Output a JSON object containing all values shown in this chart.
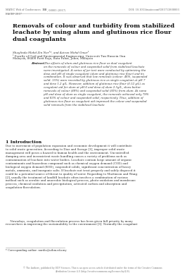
{
  "header_left": "MATEC Web of Conferences ",
  "header_left_bold": "138",
  "header_left_rest": ", 08003 (2017)",
  "header_left2": "EACEF 2017",
  "header_right": "DOI: 10.1051/matecconf/201713808003",
  "title": "Removals of colour and turbidity from stabilized\nleachate by using alum and glutinous rice flour\ndual coagulants",
  "authors": "Shaylinda Mohd Zin Nor¹*, and Aziran Mohd Omar¹",
  "affiliation1": "¹ Faculty of Civil and Environmental Engineering, Universiti Tun Hussein Onn",
  "affiliation2": "Malaysia, 86400 Parit Raja, Batu Pahat, Johor, Malaysia",
  "abstract_label": "Abstract.",
  "abstract_text": " The effects of alum and glutinous rice flour as dual coagulant\non the removals of colour and suspended solid from stabilized leachate\nwere investigated. A series of jar test were conducted by optimizing the\ndose and pH of single coagulant (alum and glutinous rice flour) and its\ncombination. It was observed that low removals (colour: 46%, suspended\nsolid: 15%) were recorded by glutinous rice as single coagulant at pH 7\nand dose 1.2 g/L. However, addition of glutinous rice flour (0.12 g/L) as\ncoagulant aid for alum at pH 6 and dose of alum 2.5g/L, show better\nremovals of colour (88%) and suspended solid (92%) from alum. At same\npH and dose of alum as single coagulant, the removals achieved only 79%\nand 83% of colour and suspended solid, respectively. Thus, addition of\nglutinous rice flour as coagulant aid improved the colour and suspended\nsolid removals from the stabilized leachate",
  "section_title": "1 Introduction",
  "intro_p1": "Due to increment of population expansion and economic development it will contribute\nto solid waste generation. According to Diaz and Savage [1], improper solid waste\nmanagement will poses a hazard to human health and the environment. Uncontrolled\ndumping area and inconsistent waste handling causes a variety of problems such as\ncontamination of leachate into water bodies. Leachate contain large amount of organic\ncontaminants and hazardous compound such as chemical oxygen demand (COD) and\nbiological oxygen demand (BOD), suspended solids, significant concentration of heavy\nmetals, ammonia, and inorganic salts. If leachate not treat properly and safely disposed it\ncould be a potential source of threat to quality of water. Regarding to Martinson and Wang\n[2], usually the treatment of landfill leachate often involves a combination of various\nmethod such as aerobic and anaerobic biological process, photo-oxidation and membrane\nprocess, chemical oxidation and precipitation, activated carbon and absorption and\ncoagulation-flocculation.",
  "intro_p2": "     Nowadays, coagulation and flocculation process has been given full priority by many\nresearchers in improving the sustainability to the environment [3]. Normally the coagulant",
  "footnote": "* Corresponding author: nurdia@uthm.edu.my",
  "footer": "© The Authors, published by EDP Sciences. This is an open access article distributed under the terms of the Creative Commons\nAttribution License 4.0 (http://creativecommons.org/licenses/by/4.0/).",
  "bg_color": "#ffffff",
  "text_color": "#2d2d2d",
  "header_color": "#666666",
  "body_color": "#333333"
}
